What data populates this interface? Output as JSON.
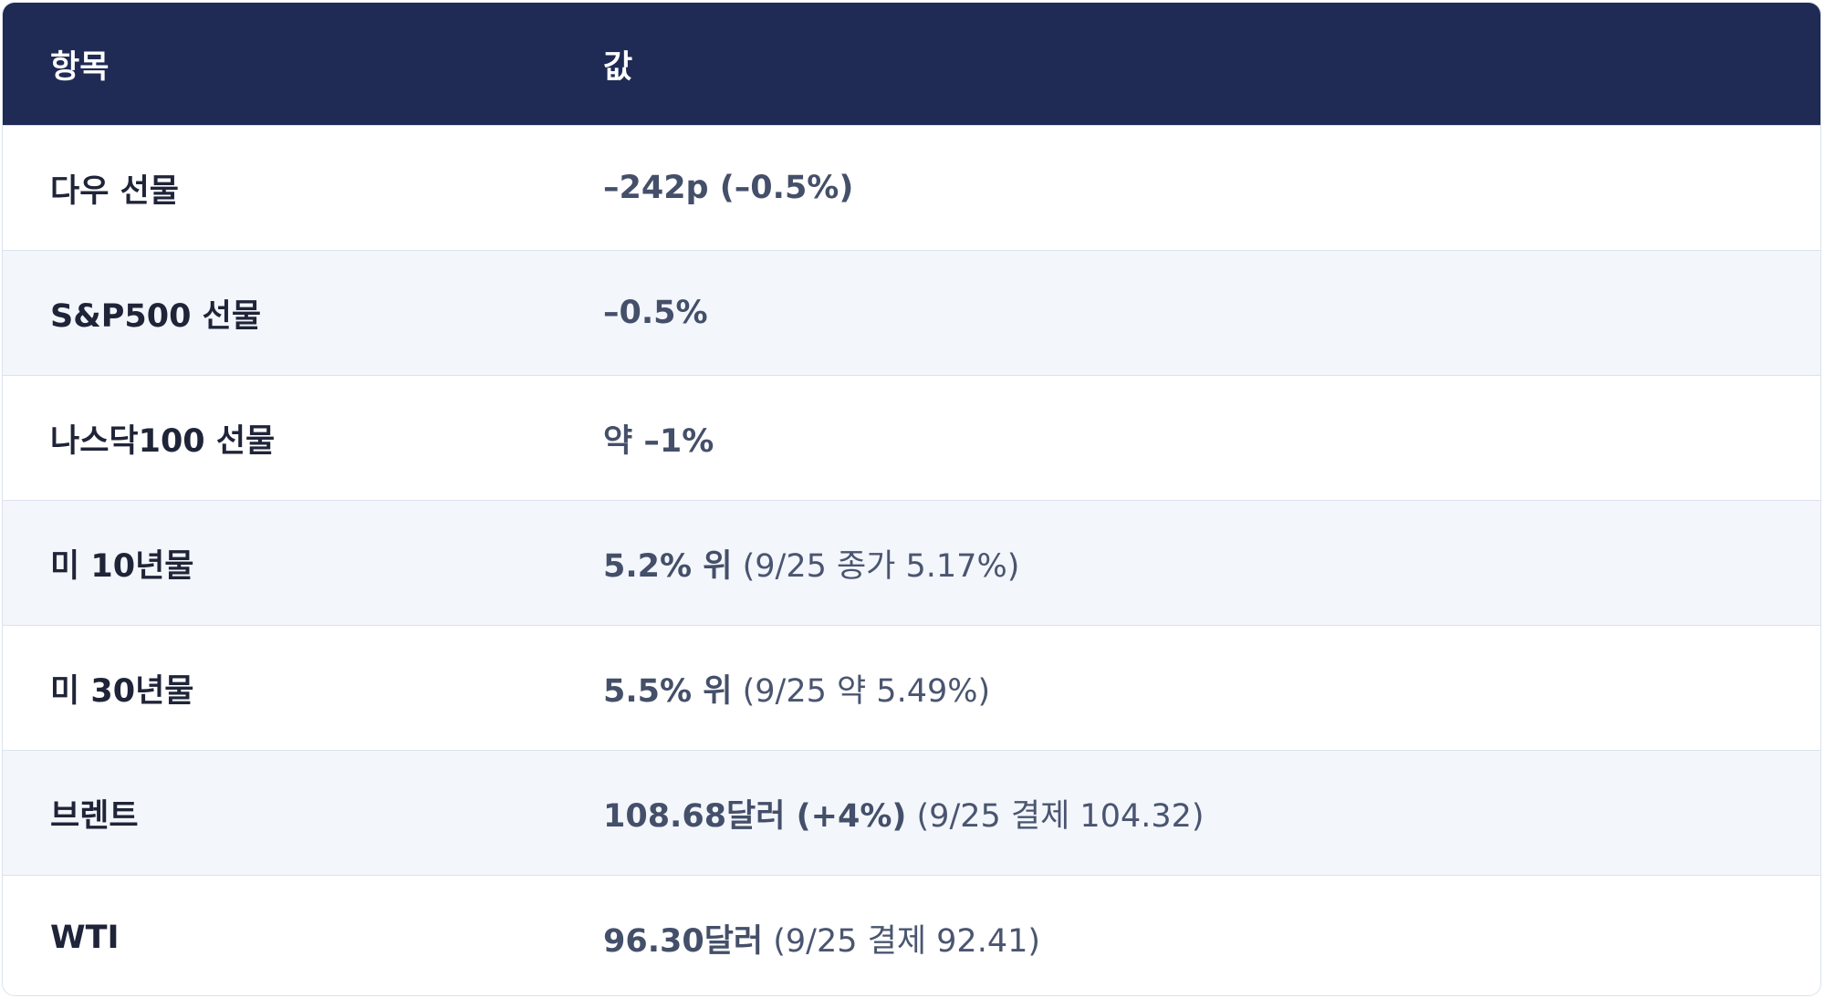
{
  "table": {
    "header": [
      "항목",
      "값"
    ],
    "rows": [
      [
        "다우 선물",
        "–242p (–0.5%)",
        null
      ],
      [
        "S&P500 선물",
        "–0.5%",
        null
      ],
      [
        "나스닥100 선물",
        "약 –1%",
        null
      ],
      [
        "미 10년물",
        "5.2% 위",
        "(9/25 종가 5.17%)"
      ],
      [
        "미 30년물",
        "5.5% 위",
        "(9/25 약 5.49%)"
      ],
      [
        "브렌트",
        "108.68달러 (+4%)",
        "(9/25 결제 104.32)"
      ],
      [
        "WTI",
        "96.30달러",
        "(9/25 결제 92.41)"
      ]
    ]
  }
}
